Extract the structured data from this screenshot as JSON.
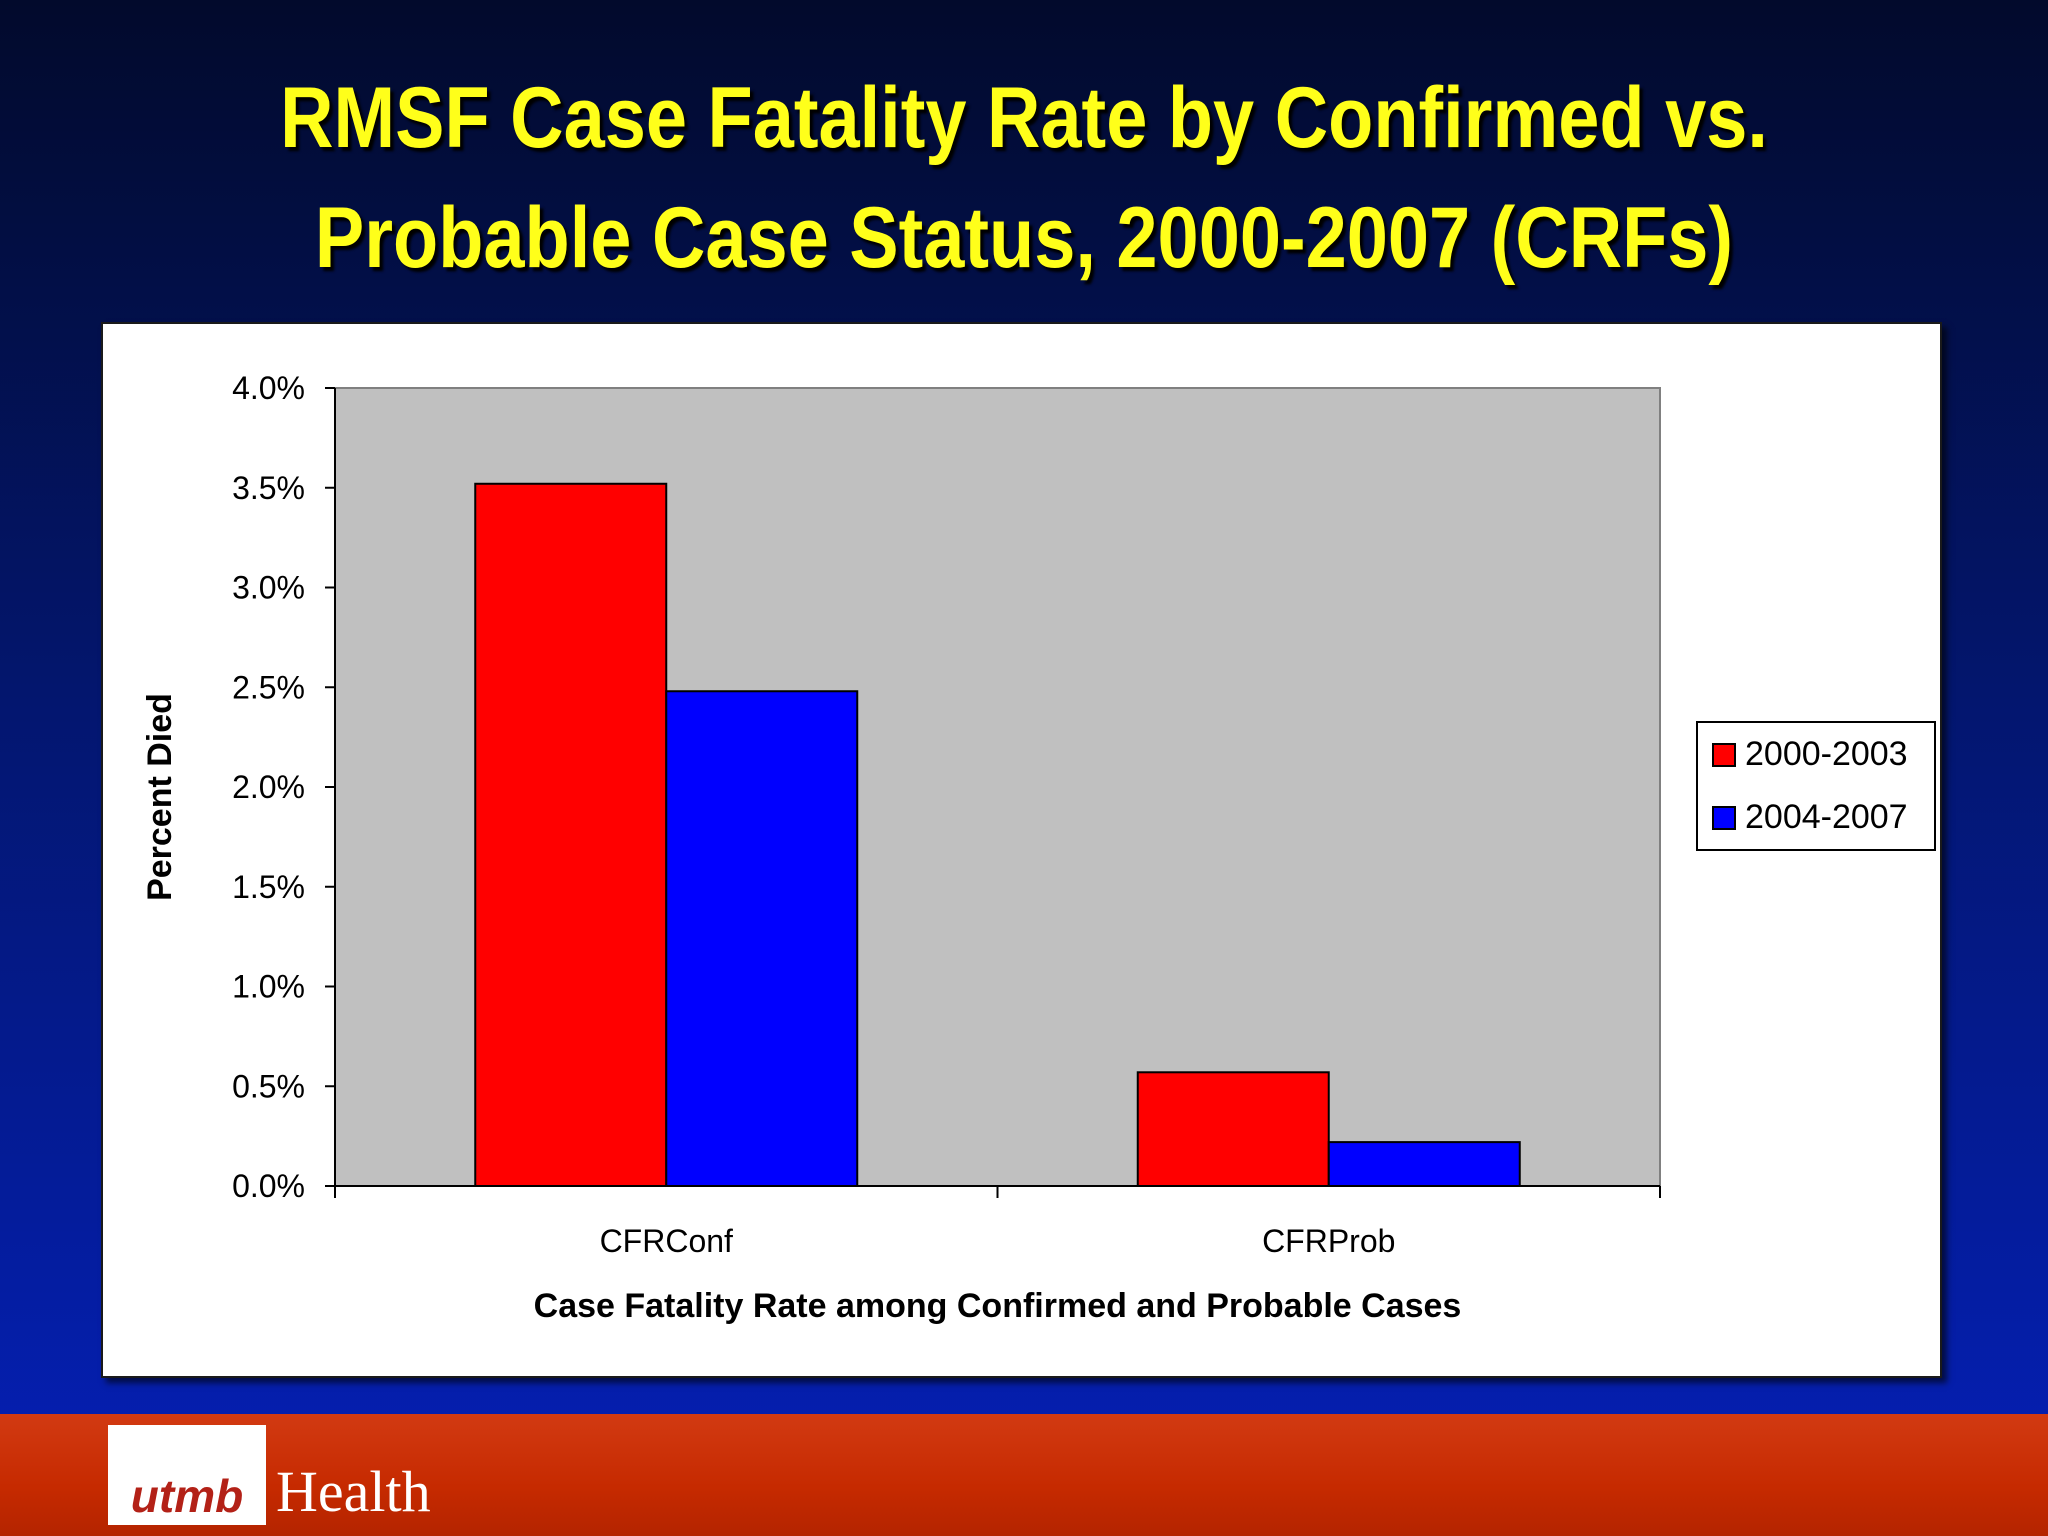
{
  "slide": {
    "title_line1": "RMSF Case Fatality Rate by Confirmed vs.",
    "title_line2": "Probable Case Status, 2000-2007 (CRFs)"
  },
  "footer": {
    "logo_text": "utmb",
    "logo_suffix": "Health"
  },
  "colors": {
    "title": "#ffff1a",
    "plot_background": "#c0c0c0",
    "series_2000_2003": "#ff0000",
    "series_2004_2007": "#0000ff"
  },
  "chart_data": {
    "type": "bar",
    "title": "",
    "xlabel": "Case Fatality Rate among Confirmed and Probable Cases",
    "ylabel": "Percent Died",
    "categories": [
      "CFRConf",
      "CFRProb"
    ],
    "series": [
      {
        "name": "2000-2003",
        "values": [
          3.52,
          0.57
        ],
        "color": "#ff0000"
      },
      {
        "name": "2004-2007",
        "values": [
          2.48,
          0.22
        ],
        "color": "#0000ff"
      }
    ],
    "ylim": [
      0,
      4.0
    ],
    "yticks": [
      "0.0%",
      "0.5%",
      "1.0%",
      "1.5%",
      "2.0%",
      "2.5%",
      "3.0%",
      "3.5%",
      "4.0%"
    ],
    "grid": false,
    "legend_position": "right"
  }
}
